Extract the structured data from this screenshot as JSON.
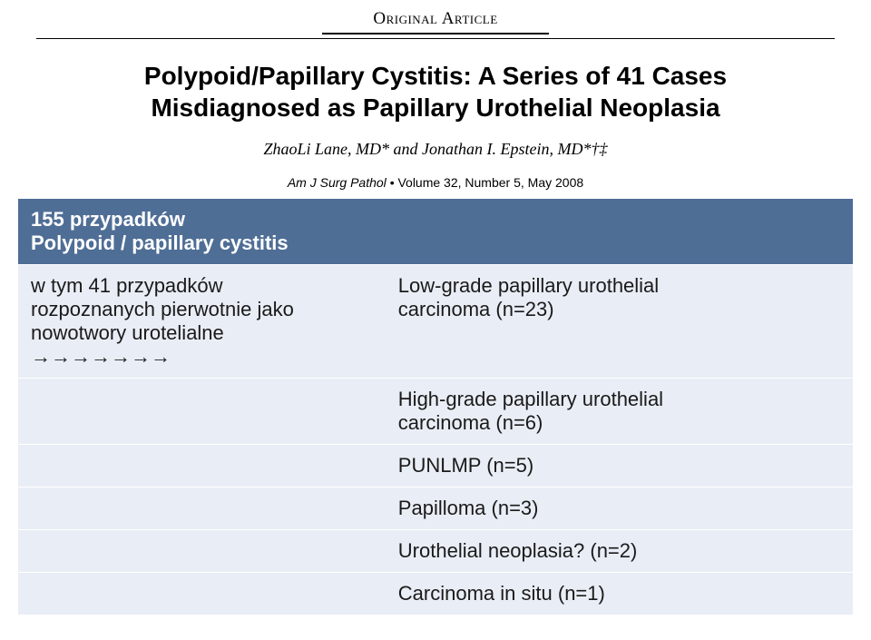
{
  "header": {
    "kicker": "Original Article",
    "title_line1": "Polypoid/Papillary Cystitis: A Series of 41 Cases",
    "title_line2": "Misdiagnosed as Papillary Urothelial Neoplasia",
    "authors": "ZhaoLi Lane, MD* and Jonathan I. Epstein, MD*†‡",
    "citation_journal": "Am J Surg Pathol",
    "citation_volume": "Volume 32, Number 5, May 2008"
  },
  "table": {
    "header_left_line1": "155 przypadków",
    "header_left_line2": "Polypoid / papillary cystitis",
    "row1": {
      "left_line1": "w tym 41 przypadków",
      "left_line2": "rozpoznanych pierwotnie jako",
      "left_line3": "nowotwory urotelialne",
      "left_arrows": "→→→→→→→",
      "right_line1": "Low-grade papillary urothelial",
      "right_line2": "carcinoma (n=23)"
    },
    "row2": {
      "right_line1": "High-grade papillary urothelial",
      "right_line2": "carcinoma (n=6)"
    },
    "row3": {
      "right": "PUNLMP (n=5)"
    },
    "row4": {
      "right": "Papilloma (n=3)"
    },
    "row5": {
      "right": "Urothelial neoplasia? (n=2)"
    },
    "row6": {
      "right": "Carcinoma in situ (n=1)"
    }
  },
  "colors": {
    "header_row_bg": "#4f6e96",
    "body_row_bg": "#e9edf5",
    "text_dark": "#1a1a1a"
  }
}
